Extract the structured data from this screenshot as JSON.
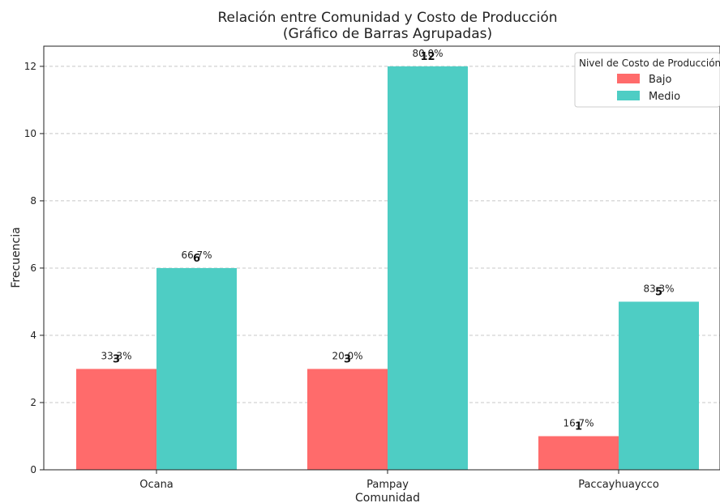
{
  "chart_data": {
    "type": "bar",
    "title": "Relación entre Comunidad y Costo de Producción",
    "subtitle": "(Gráfico de Barras Agrupadas)",
    "xlabel": "Comunidad",
    "ylabel": "Frecuencia",
    "categories": [
      "Ocana",
      "Pampay",
      "Paccayhuaycco"
    ],
    "ylim": [
      0,
      12.6
    ],
    "yticks": [
      0,
      2,
      4,
      6,
      8,
      10,
      12
    ],
    "grid": true,
    "legend": {
      "title": "Nivel de Costo de Producción",
      "placement": "top-right"
    },
    "series": [
      {
        "name": "Bajo",
        "color": "#ff6b6b",
        "values": [
          3,
          3,
          1
        ],
        "percent_labels": [
          "33.3%",
          "20.0%",
          "16.7%"
        ]
      },
      {
        "name": "Medio",
        "color": "#4ecdc4",
        "values": [
          6,
          12,
          5
        ],
        "percent_labels": [
          "66.7%",
          "80.0%",
          "83.3%"
        ]
      }
    ]
  }
}
